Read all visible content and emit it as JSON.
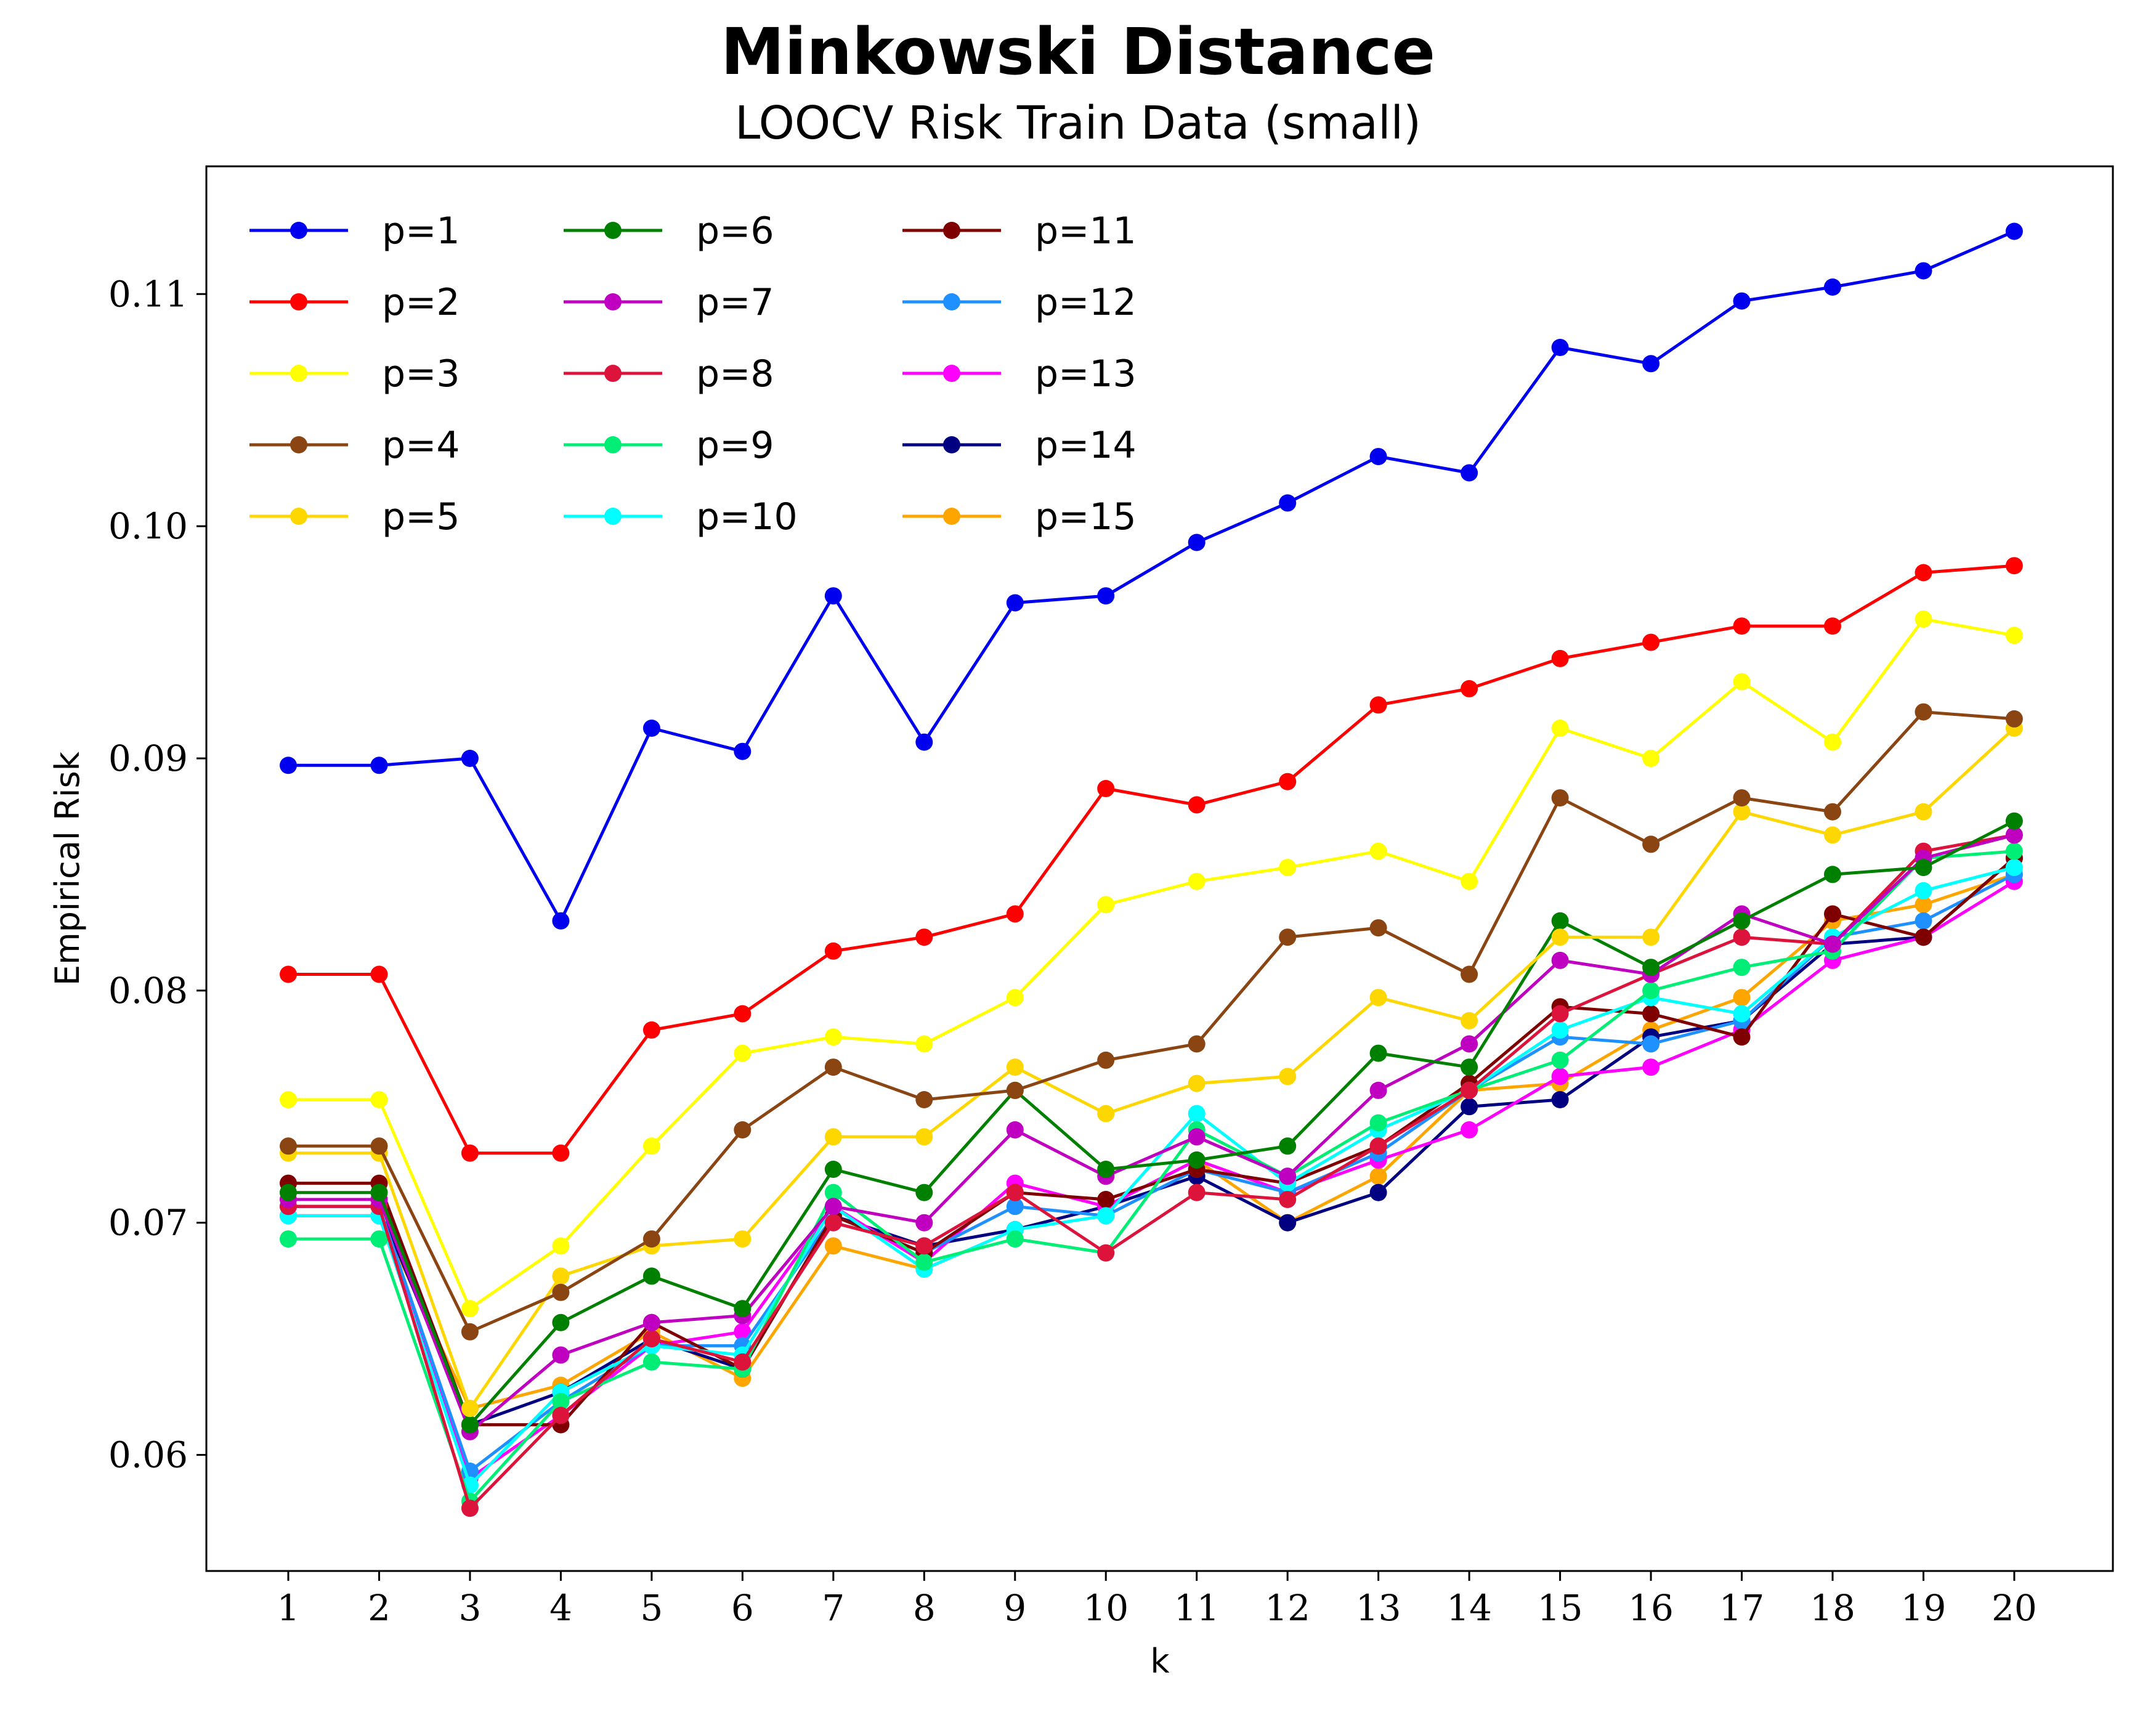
{
  "chart_data": {
    "type": "line",
    "title": "Minkowski Distance",
    "subtitle": "LOOCV Risk Train Data (small)",
    "xlabel": "k",
    "ylabel": "Empirical Risk",
    "x": [
      1,
      2,
      3,
      4,
      5,
      6,
      7,
      8,
      9,
      10,
      11,
      12,
      13,
      14,
      15,
      16,
      17,
      18,
      19,
      20
    ],
    "ylim": [
      0.055,
      0.1155
    ],
    "yticks": [
      "0.06",
      "0.07",
      "0.08",
      "0.09",
      "0.10",
      "0.11"
    ],
    "ytick_values": [
      0.06,
      0.07,
      0.08,
      0.09,
      0.1,
      0.11
    ],
    "xticks": [
      "1",
      "2",
      "3",
      "4",
      "5",
      "6",
      "7",
      "8",
      "9",
      "10",
      "11",
      "12",
      "13",
      "14",
      "15",
      "16",
      "17",
      "18",
      "19",
      "20"
    ],
    "grid": false,
    "legend_position": "top-left",
    "series": [
      {
        "name": "p=1",
        "color": "#0000ee",
        "values": [
          0.0897,
          0.0897,
          0.09,
          0.083,
          0.0913,
          0.0903,
          0.097,
          0.0907,
          0.0967,
          0.097,
          0.0993,
          0.101,
          0.103,
          0.1023,
          0.1077,
          0.107,
          0.1097,
          0.1103,
          0.111,
          0.1127
        ]
      },
      {
        "name": "p=2",
        "color": "#ff0000",
        "values": [
          0.0807,
          0.0807,
          0.073,
          0.073,
          0.0783,
          0.079,
          0.0817,
          0.0823,
          0.0833,
          0.0887,
          0.088,
          0.089,
          0.0923,
          0.093,
          0.0943,
          0.095,
          0.0957,
          0.0957,
          0.098,
          0.0983
        ]
      },
      {
        "name": "p=3",
        "color": "#ffff00",
        "values": [
          0.0753,
          0.0753,
          0.0663,
          0.069,
          0.0733,
          0.0773,
          0.078,
          0.0777,
          0.0797,
          0.0837,
          0.0847,
          0.0853,
          0.086,
          0.0847,
          0.0913,
          0.09,
          0.0933,
          0.0907,
          0.096,
          0.0953
        ]
      },
      {
        "name": "p=4",
        "color": "#8b4513",
        "values": [
          0.0733,
          0.0733,
          0.0653,
          0.067,
          0.0693,
          0.074,
          0.0767,
          0.0753,
          0.0757,
          0.077,
          0.0777,
          0.0823,
          0.0827,
          0.0807,
          0.0883,
          0.0863,
          0.0883,
          0.0877,
          0.092,
          0.0917
        ]
      },
      {
        "name": "p=5",
        "color": "#ffd700",
        "values": [
          0.073,
          0.073,
          0.062,
          0.0677,
          0.069,
          0.0693,
          0.0737,
          0.0737,
          0.0767,
          0.0747,
          0.076,
          0.0763,
          0.0797,
          0.0787,
          0.0823,
          0.0823,
          0.0877,
          0.0867,
          0.0877,
          0.0913
        ]
      },
      {
        "name": "p=6",
        "color": "#008000",
        "values": [
          0.0713,
          0.0713,
          0.0613,
          0.0657,
          0.0677,
          0.0663,
          0.0723,
          0.0713,
          0.0757,
          0.0723,
          0.0727,
          0.0733,
          0.0773,
          0.0767,
          0.083,
          0.081,
          0.083,
          0.085,
          0.0853,
          0.0873
        ]
      },
      {
        "name": "p=7",
        "color": "#c000c0",
        "values": [
          0.071,
          0.071,
          0.061,
          0.0643,
          0.0657,
          0.066,
          0.0707,
          0.07,
          0.074,
          0.072,
          0.0737,
          0.072,
          0.0757,
          0.0777,
          0.0813,
          0.0807,
          0.0833,
          0.082,
          0.0857,
          0.0867
        ]
      },
      {
        "name": "p=8",
        "color": "#dc143c",
        "values": [
          0.0707,
          0.0707,
          0.0577,
          0.0617,
          0.065,
          0.064,
          0.07,
          0.069,
          0.0713,
          0.0687,
          0.0713,
          0.071,
          0.0733,
          0.0757,
          0.079,
          0.0807,
          0.0823,
          0.082,
          0.086,
          0.0867
        ]
      },
      {
        "name": "p=9",
        "color": "#00ee76",
        "values": [
          0.0693,
          0.0693,
          0.058,
          0.0623,
          0.064,
          0.0637,
          0.0713,
          0.0683,
          0.0693,
          0.0687,
          0.074,
          0.072,
          0.0743,
          0.0757,
          0.077,
          0.08,
          0.081,
          0.0817,
          0.0857,
          0.086
        ]
      },
      {
        "name": "p=10",
        "color": "#00ffff",
        "values": [
          0.0703,
          0.0703,
          0.0587,
          0.0627,
          0.0647,
          0.0643,
          0.0707,
          0.068,
          0.0697,
          0.0703,
          0.0747,
          0.0717,
          0.074,
          0.0757,
          0.0783,
          0.0797,
          0.079,
          0.0823,
          0.0843,
          0.0853
        ]
      },
      {
        "name": "p=11",
        "color": "#7f0000",
        "values": [
          0.0717,
          0.0717,
          0.0613,
          0.0613,
          0.0657,
          0.0637,
          0.0703,
          0.0687,
          0.0713,
          0.071,
          0.0723,
          0.0717,
          0.0733,
          0.076,
          0.0793,
          0.079,
          0.078,
          0.0833,
          0.0823,
          0.0857
        ]
      },
      {
        "name": "p=12",
        "color": "#1e90ff",
        "values": [
          0.0707,
          0.0707,
          0.0593,
          0.0623,
          0.0647,
          0.0647,
          0.0703,
          0.0687,
          0.0707,
          0.0703,
          0.0723,
          0.0713,
          0.073,
          0.0757,
          0.078,
          0.0777,
          0.0787,
          0.0823,
          0.083,
          0.085
        ]
      },
      {
        "name": "p=13",
        "color": "#ff00ff",
        "values": [
          0.0703,
          0.0703,
          0.059,
          0.0617,
          0.0647,
          0.0653,
          0.0707,
          0.0683,
          0.0717,
          0.0707,
          0.0727,
          0.0713,
          0.0727,
          0.074,
          0.0763,
          0.0767,
          0.0783,
          0.0813,
          0.0823,
          0.0847
        ]
      },
      {
        "name": "p=14",
        "color": "#000080",
        "values": [
          0.0707,
          0.0707,
          0.0613,
          0.0627,
          0.065,
          0.0637,
          0.0703,
          0.069,
          0.0697,
          0.0707,
          0.072,
          0.07,
          0.0713,
          0.075,
          0.0753,
          0.078,
          0.0787,
          0.082,
          0.0823,
          0.0857
        ]
      },
      {
        "name": "p=15",
        "color": "#ffa500",
        "values": [
          0.0703,
          0.0703,
          0.062,
          0.063,
          0.0653,
          0.0633,
          0.069,
          0.068,
          0.0697,
          0.0707,
          0.0727,
          0.07,
          0.072,
          0.0757,
          0.076,
          0.0783,
          0.0797,
          0.083,
          0.0837,
          0.085
        ]
      }
    ]
  }
}
